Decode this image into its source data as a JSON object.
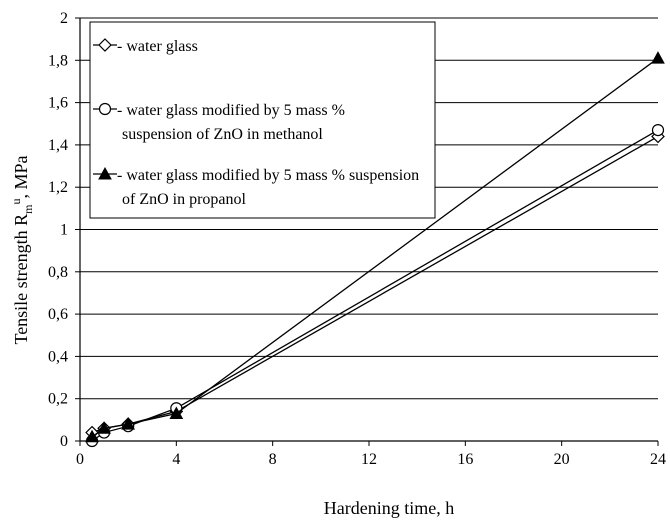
{
  "chart_data": {
    "type": "line",
    "title": "",
    "xlabel": "Hardening time, h",
    "ylabel": {
      "prefix": "Tensile strength  R",
      "sub": "m",
      "sup": "u",
      "suffix": ",  MPa"
    },
    "xlim": [
      0,
      24
    ],
    "ylim": [
      0,
      2
    ],
    "x_ticks": [
      0,
      4,
      8,
      12,
      16,
      20,
      24
    ],
    "x_tick_labels": [
      "0",
      "4",
      "8",
      "12",
      "16",
      "20",
      "24"
    ],
    "y_ticks": [
      0,
      0.2,
      0.4,
      0.6,
      0.8,
      1,
      1.2,
      1.4,
      1.6,
      1.8,
      2
    ],
    "y_tick_labels": [
      "0",
      "0,2",
      "0,4",
      "0,6",
      "0,8",
      "1",
      "1,2",
      "1,4",
      "1,6",
      "1,8",
      "2"
    ],
    "grid": "horizontal",
    "legend_position": "top-left",
    "series": [
      {
        "name": "- water glass",
        "name_lines": [
          "- water glass"
        ],
        "marker": "diamond",
        "x": [
          0.5,
          1,
          2,
          4,
          24
        ],
        "values": [
          0.04,
          0.06,
          0.08,
          0.14,
          1.44
        ]
      },
      {
        "name": "- water glass modified by 5 mass % suspension of ZnO in methanol",
        "name_lines": [
          "- water glass modified by 5 mass %",
          "suspension of ZnO in methanol"
        ],
        "marker": "circle",
        "x": [
          0.5,
          1,
          2,
          4,
          24
        ],
        "values": [
          0.0,
          0.04,
          0.07,
          0.155,
          1.47
        ]
      },
      {
        "name": "- water glass modified by 5 mass % suspension of ZnO in propanol",
        "name_lines": [
          "- water glass modified by 5 mass % suspension",
          "of ZnO in propanol"
        ],
        "marker": "triangle",
        "x": [
          0.5,
          1,
          2,
          4,
          24
        ],
        "values": [
          0.02,
          0.06,
          0.08,
          0.13,
          1.81
        ]
      }
    ]
  }
}
